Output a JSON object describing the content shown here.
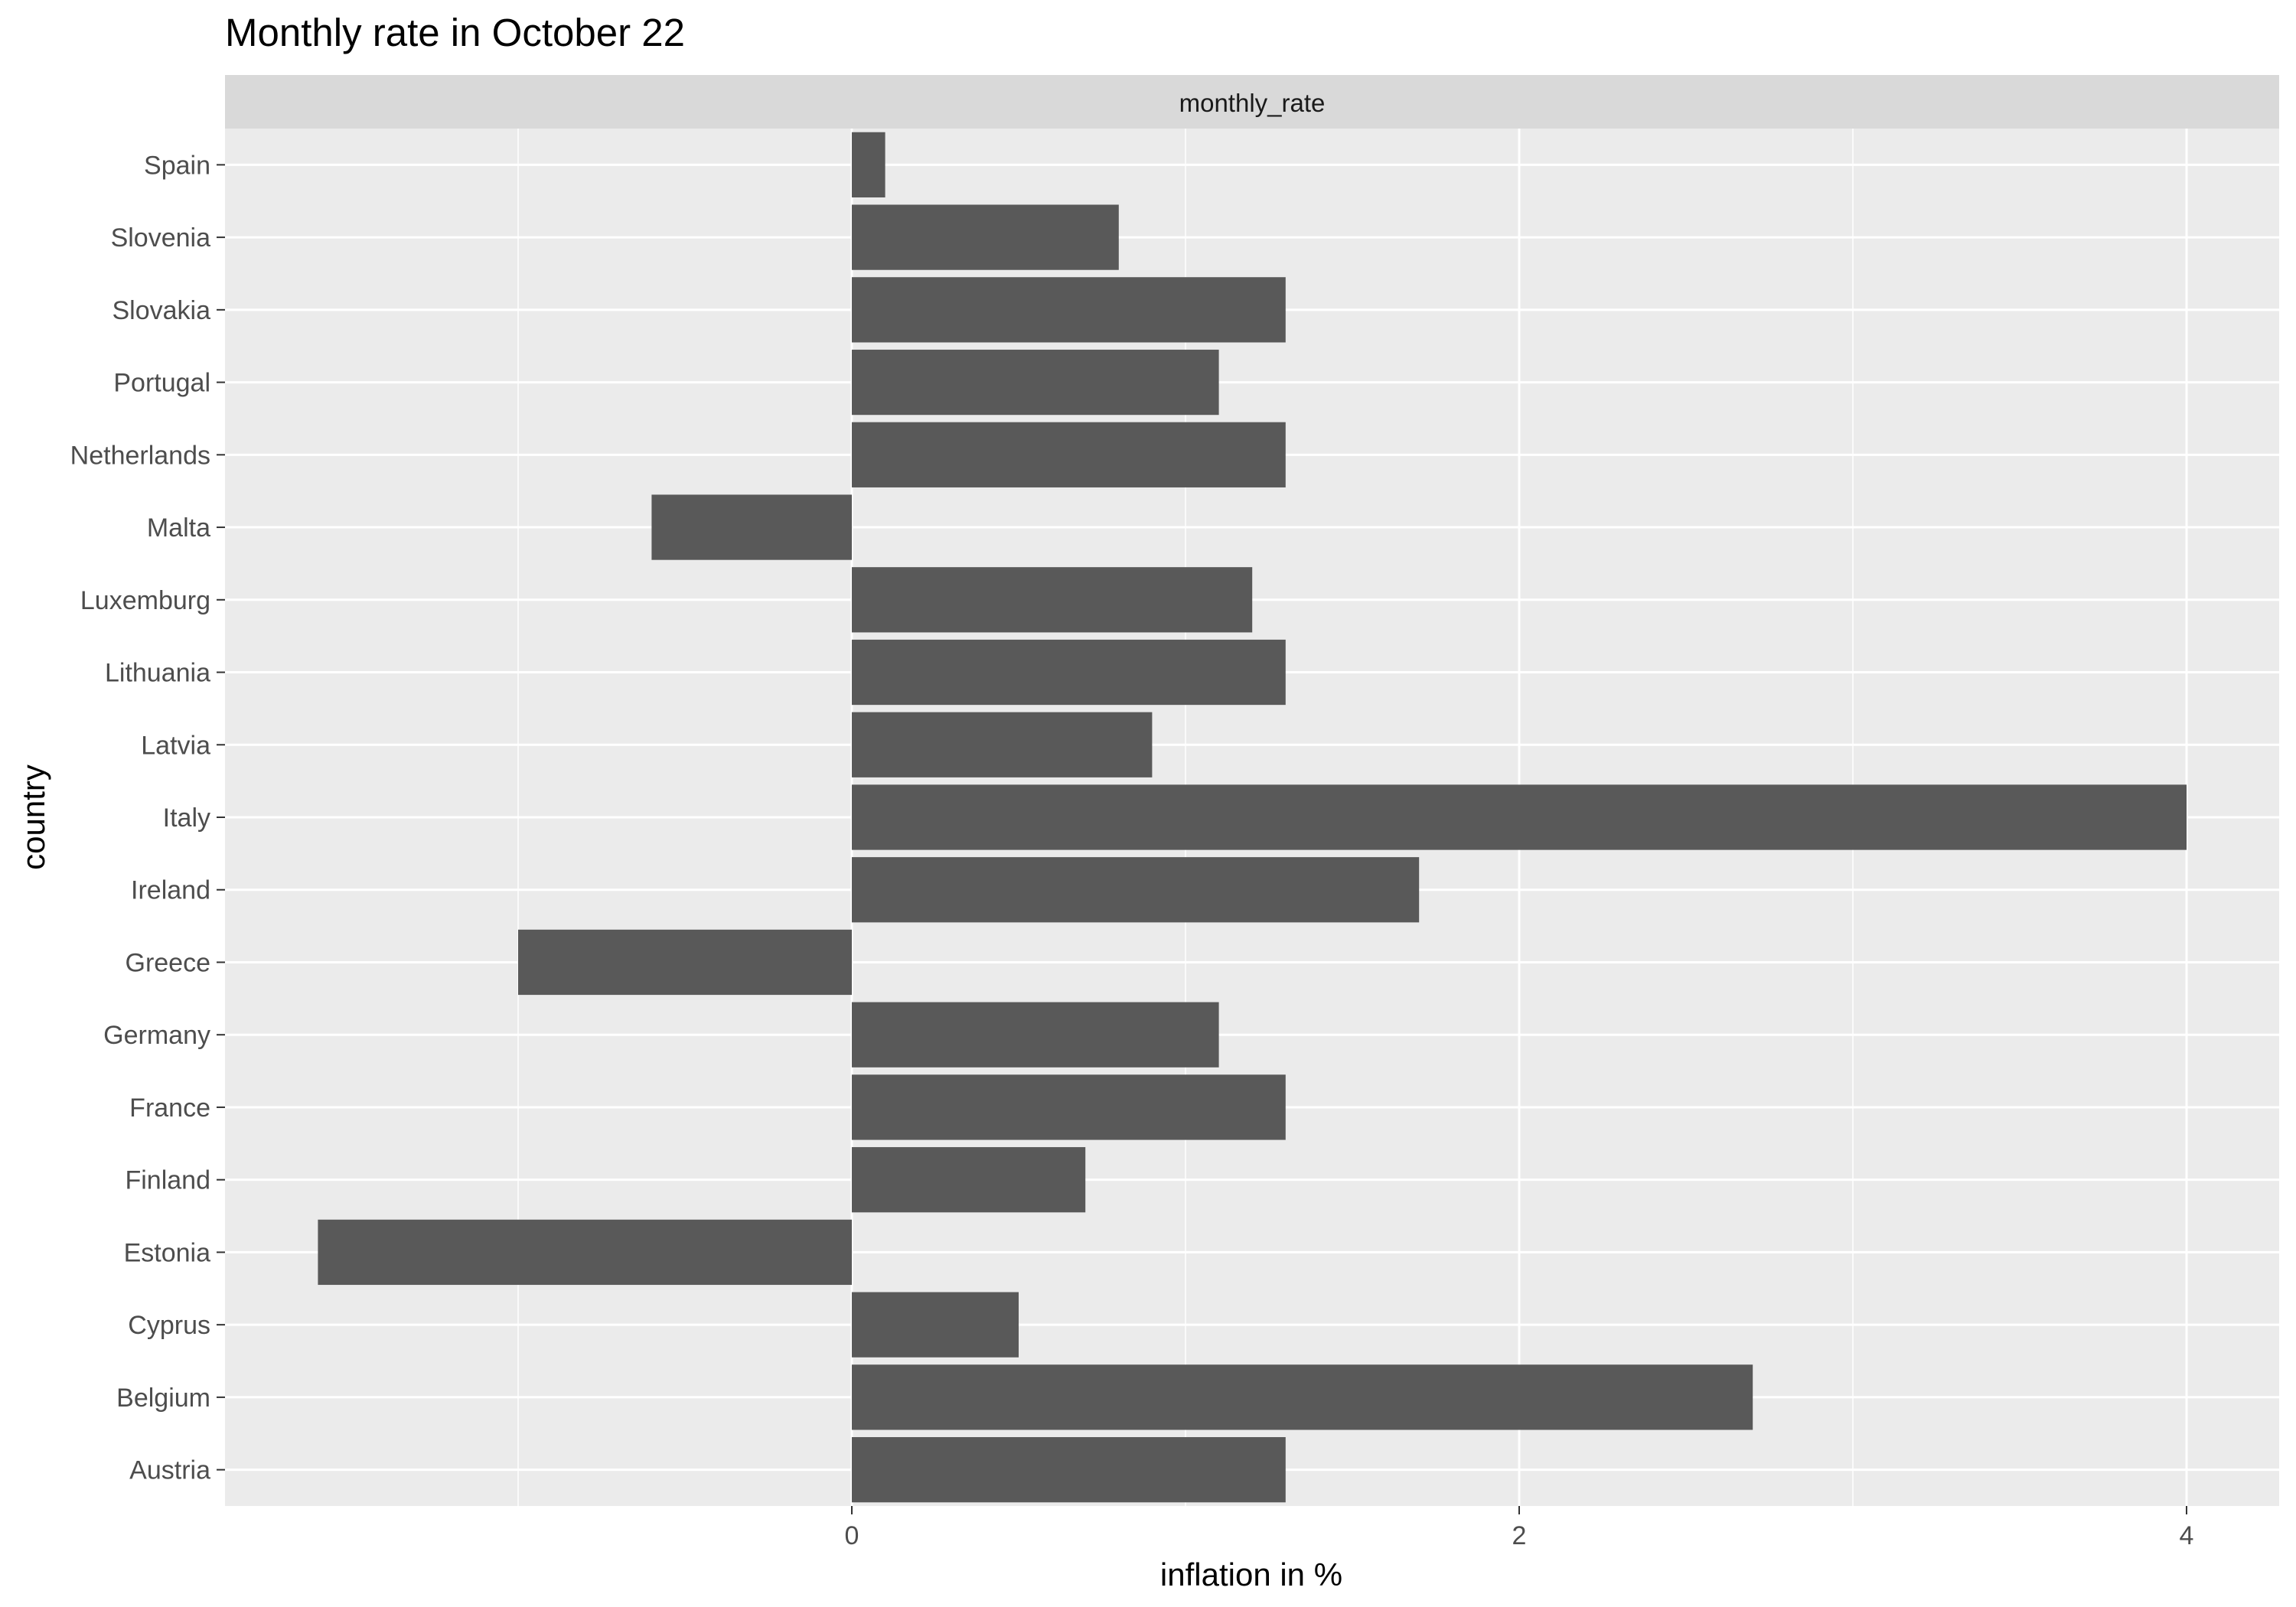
{
  "chart_data": {
    "type": "bar",
    "orientation": "horizontal",
    "title": "Monthly rate in October 22",
    "facet_label": "monthly_rate",
    "xlabel": "inflation in %",
    "ylabel": "country",
    "xlim": [
      -1.88,
      4.28
    ],
    "xticks": [
      0,
      2,
      4
    ],
    "xtick_labels": [
      "0",
      "2",
      "4"
    ],
    "grid": true,
    "colors": {
      "bar": "#595959",
      "panel": "#ebebeb",
      "strip": "#d9d9d9",
      "grid": "#ffffff"
    },
    "categories": [
      "Austria",
      "Belgium",
      "Cyprus",
      "Estonia",
      "Finland",
      "France",
      "Germany",
      "Greece",
      "Ireland",
      "Italy",
      "Latvia",
      "Lithuania",
      "Luxemburg",
      "Malta",
      "Netherlands",
      "Portugal",
      "Slovakia",
      "Slovenia",
      "Spain"
    ],
    "values": [
      1.3,
      2.7,
      0.5,
      -1.6,
      0.7,
      1.3,
      1.1,
      -1.0,
      1.7,
      4.0,
      0.9,
      1.3,
      1.2,
      -0.6,
      1.3,
      1.1,
      1.3,
      0.8,
      0.1
    ]
  }
}
